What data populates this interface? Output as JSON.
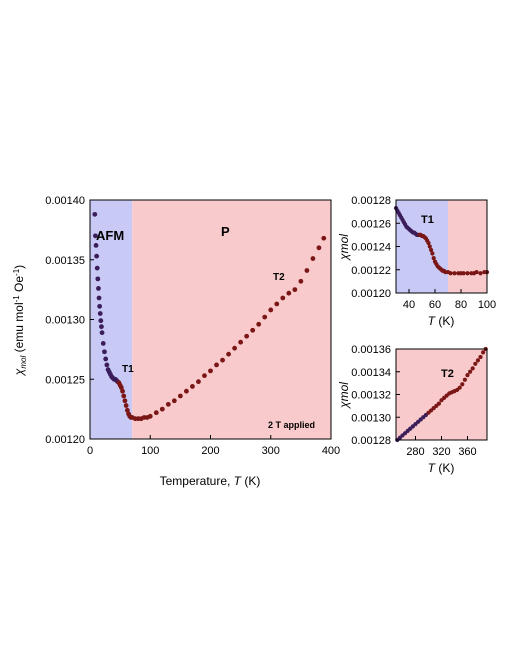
{
  "colors": {
    "afm_region": "#c9c9f5",
    "p_region": "#f9cacb",
    "points_low": "#3a1d5a",
    "points_high": "#7a1616"
  },
  "chart_data": [
    {
      "type": "scatter",
      "title": "",
      "xlabel_prefix": "Temperature, ",
      "xlabel_var": "T",
      "xlabel_unit": " (K)",
      "ylabel_var": "χ",
      "ylabel_sub": "mol",
      "ylabel_rest_1": " (emu mol",
      "ylabel_sup_1": "-1",
      "ylabel_rest_2": " Oe",
      "ylabel_sup_2": "-1",
      "ylabel_rest_3": ")",
      "xlim": [
        0,
        400
      ],
      "ylim": [
        0.0012,
        0.0014
      ],
      "xticks": [
        "0",
        "100",
        "200",
        "300",
        "400"
      ],
      "yticks": [
        "0.00120",
        "0.00125",
        "0.00130",
        "0.00135",
        "0.00140"
      ],
      "regions": [
        {
          "label": "AFM",
          "x_from": 0,
          "x_to": 70
        },
        {
          "label": "P",
          "x_from": 70,
          "x_to": 400
        }
      ],
      "annotations": [
        "T1",
        "T2",
        "2 T applied"
      ],
      "series_points": [
        [
          8,
          0.001388
        ],
        [
          9,
          0.00137
        ],
        [
          10,
          0.001362
        ],
        [
          11,
          0.001353
        ],
        [
          12,
          0.001343
        ],
        [
          13,
          0.001334
        ],
        [
          14,
          0.001326
        ],
        [
          15,
          0.001318
        ],
        [
          16,
          0.001311
        ],
        [
          17,
          0.001305
        ],
        [
          18,
          0.001299
        ],
        [
          19,
          0.001294
        ],
        [
          20,
          0.001289
        ],
        [
          22,
          0.00128
        ],
        [
          24,
          0.001273
        ],
        [
          26,
          0.001267
        ],
        [
          28,
          0.001262
        ],
        [
          30,
          0.001258
        ],
        [
          32,
          0.001256
        ],
        [
          34,
          0.001254
        ],
        [
          36,
          0.001252
        ],
        [
          38,
          0.001251
        ],
        [
          40,
          0.00125
        ],
        [
          42,
          0.00125
        ],
        [
          44,
          0.001249
        ],
        [
          46,
          0.001248
        ],
        [
          48,
          0.001247
        ],
        [
          50,
          0.001245
        ],
        [
          52,
          0.001243
        ],
        [
          54,
          0.00124
        ],
        [
          56,
          0.001236
        ],
        [
          58,
          0.001232
        ],
        [
          60,
          0.001228
        ],
        [
          62,
          0.001224
        ],
        [
          64,
          0.001221
        ],
        [
          66,
          0.001219
        ],
        [
          68,
          0.001218
        ],
        [
          70,
          0.001218
        ],
        [
          75,
          0.001217
        ],
        [
          80,
          0.001217
        ],
        [
          85,
          0.001217
        ],
        [
          90,
          0.001218
        ],
        [
          95,
          0.001218
        ],
        [
          100,
          0.001219
        ],
        [
          110,
          0.001222
        ],
        [
          120,
          0.001225
        ],
        [
          130,
          0.001229
        ],
        [
          140,
          0.001232
        ],
        [
          150,
          0.001236
        ],
        [
          160,
          0.00124
        ],
        [
          170,
          0.001244
        ],
        [
          180,
          0.001248
        ],
        [
          190,
          0.001253
        ],
        [
          200,
          0.001257
        ],
        [
          210,
          0.001262
        ],
        [
          220,
          0.001266
        ],
        [
          230,
          0.001271
        ],
        [
          240,
          0.001276
        ],
        [
          250,
          0.001281
        ],
        [
          260,
          0.001286
        ],
        [
          270,
          0.001291
        ],
        [
          280,
          0.001296
        ],
        [
          290,
          0.001302
        ],
        [
          300,
          0.001308
        ],
        [
          310,
          0.001313
        ],
        [
          320,
          0.001318
        ],
        [
          330,
          0.001322
        ],
        [
          340,
          0.001325
        ],
        [
          350,
          0.001332
        ],
        [
          360,
          0.001341
        ],
        [
          370,
          0.001351
        ],
        [
          380,
          0.00136
        ],
        [
          388,
          0.001368
        ]
      ]
    },
    {
      "type": "scatter",
      "title": "",
      "xlabel_var": "T",
      "xlabel_unit": " (K)",
      "ylabel_var": "χmol",
      "xlim": [
        30,
        100
      ],
      "ylim": [
        0.0012,
        0.00128
      ],
      "xticks": [
        "40",
        "60",
        "80",
        "100"
      ],
      "yticks": [
        "0.00120",
        "0.00122",
        "0.00124",
        "0.00126",
        "0.00128"
      ],
      "regions": [
        {
          "label": "",
          "x_from": 30,
          "x_to": 70
        },
        {
          "label": "",
          "x_from": 70,
          "x_to": 100
        }
      ],
      "annotations": [
        "T1"
      ],
      "series_points": [
        [
          30,
          0.001273
        ],
        [
          31,
          0.001271
        ],
        [
          32,
          0.001269
        ],
        [
          33,
          0.001267
        ],
        [
          34,
          0.001265
        ],
        [
          35,
          0.001263
        ],
        [
          36,
          0.001261
        ],
        [
          37,
          0.001259
        ],
        [
          38,
          0.001257
        ],
        [
          39,
          0.001256
        ],
        [
          40,
          0.001255
        ],
        [
          41,
          0.001254
        ],
        [
          42,
          0.001253
        ],
        [
          43,
          0.001252
        ],
        [
          44,
          0.001252
        ],
        [
          45,
          0.001251
        ],
        [
          46,
          0.00125
        ],
        [
          47,
          0.00125
        ],
        [
          48,
          0.00125
        ],
        [
          49,
          0.00125
        ],
        [
          50,
          0.001249
        ],
        [
          51,
          0.001249
        ],
        [
          52,
          0.001248
        ],
        [
          53,
          0.001247
        ],
        [
          54,
          0.001245
        ],
        [
          55,
          0.001243
        ],
        [
          56,
          0.00124
        ],
        [
          57,
          0.001237
        ],
        [
          58,
          0.001234
        ],
        [
          59,
          0.00123
        ],
        [
          60,
          0.001227
        ],
        [
          61,
          0.001225
        ],
        [
          62,
          0.001223
        ],
        [
          63,
          0.001222
        ],
        [
          64,
          0.001221
        ],
        [
          65,
          0.00122
        ],
        [
          66,
          0.001219
        ],
        [
          67,
          0.001219
        ],
        [
          68,
          0.001218
        ],
        [
          70,
          0.001218
        ],
        [
          72,
          0.001217
        ],
        [
          75,
          0.001217
        ],
        [
          78,
          0.001217
        ],
        [
          80,
          0.001217
        ],
        [
          82,
          0.001217
        ],
        [
          85,
          0.001217
        ],
        [
          88,
          0.001217
        ],
        [
          90,
          0.001217
        ],
        [
          92,
          0.001218
        ],
        [
          95,
          0.001217
        ],
        [
          98,
          0.001218
        ],
        [
          100,
          0.001218
        ]
      ]
    },
    {
      "type": "scatter",
      "title": "",
      "xlabel_var": "T",
      "xlabel_unit": " (K)",
      "ylabel_var": "χmol",
      "xlim": [
        250,
        390
      ],
      "ylim": [
        0.00128,
        0.00136
      ],
      "xticks": [
        "280",
        "320",
        "360"
      ],
      "yticks": [
        "0.00128",
        "0.00130",
        "0.00132",
        "0.00134",
        "0.00136"
      ],
      "regions": [
        {
          "label": "",
          "x_from": 250,
          "x_to": 390
        }
      ],
      "annotations": [
        "T2"
      ],
      "series_points": [
        [
          252,
          0.00128
        ],
        [
          256,
          0.001282
        ],
        [
          260,
          0.001284
        ],
        [
          264,
          0.001286
        ],
        [
          268,
          0.001288
        ],
        [
          272,
          0.00129
        ],
        [
          276,
          0.001292
        ],
        [
          280,
          0.001294
        ],
        [
          284,
          0.001296
        ],
        [
          288,
          0.001298
        ],
        [
          292,
          0.0013
        ],
        [
          296,
          0.001302
        ],
        [
          300,
          0.001304
        ],
        [
          304,
          0.001306
        ],
        [
          308,
          0.001308
        ],
        [
          312,
          0.00131
        ],
        [
          316,
          0.001312
        ],
        [
          320,
          0.001315
        ],
        [
          324,
          0.001317
        ],
        [
          328,
          0.001319
        ],
        [
          332,
          0.001321
        ],
        [
          336,
          0.001322
        ],
        [
          340,
          0.001323
        ],
        [
          344,
          0.001324
        ],
        [
          348,
          0.001326
        ],
        [
          352,
          0.001329
        ],
        [
          356,
          0.001333
        ],
        [
          360,
          0.001337
        ],
        [
          364,
          0.00134
        ],
        [
          368,
          0.001343
        ],
        [
          372,
          0.001347
        ],
        [
          376,
          0.00135
        ],
        [
          380,
          0.001353
        ],
        [
          384,
          0.001357
        ],
        [
          388,
          0.00136
        ]
      ]
    }
  ]
}
